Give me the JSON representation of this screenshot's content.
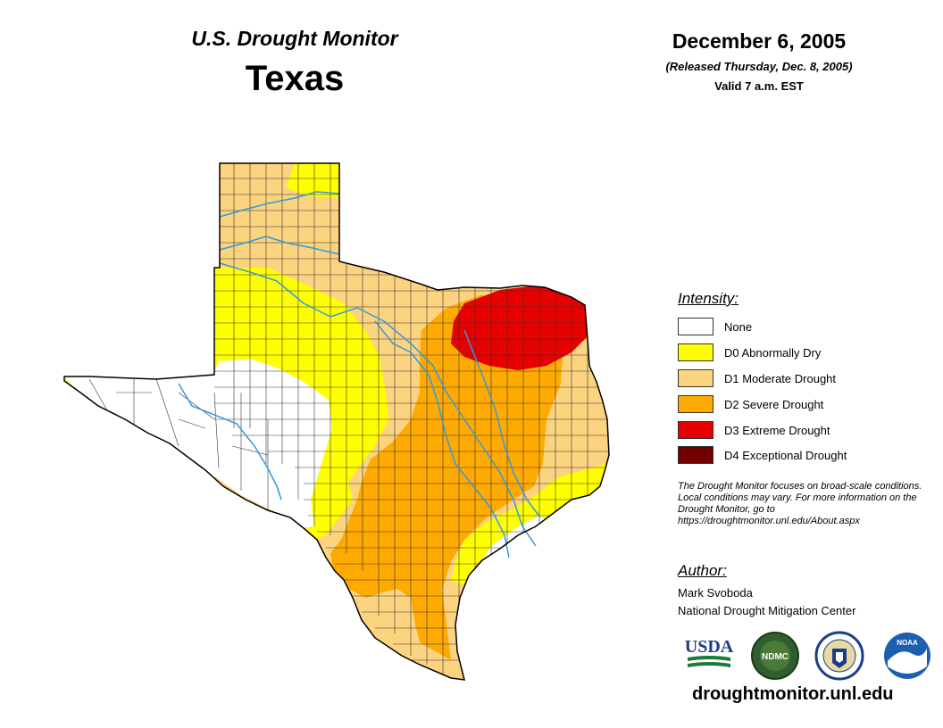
{
  "header": {
    "monitor_title": "U.S. Drought Monitor",
    "state": "Texas",
    "date": "December 6, 2005",
    "released": "(Released Thursday, Dec. 8, 2005)",
    "valid": "Valid 7 a.m. EST"
  },
  "legend": {
    "title": "Intensity:",
    "items": [
      {
        "label": "None",
        "color": "#ffffff"
      },
      {
        "label": "D0 Abnormally Dry",
        "color": "#ffff00"
      },
      {
        "label": "D1 Moderate Drought",
        "color": "#fcd37f"
      },
      {
        "label": "D2 Severe Drought",
        "color": "#ffaa00"
      },
      {
        "label": "D3 Extreme Drought",
        "color": "#e60000"
      },
      {
        "label": "D4 Exceptional Drought",
        "color": "#730000"
      }
    ]
  },
  "note": "The Drought Monitor focuses on broad-scale conditions. Local conditions may vary. For more information on the Drought Monitor, go to https://droughtmonitor.unl.edu/About.aspx",
  "author": {
    "title": "Author:",
    "name": "Mark Svoboda",
    "organization": "National Drought Mitigation Center"
  },
  "logos": {
    "usda": "USDA",
    "ndmc": "NDMC",
    "commerce": "commerce-seal",
    "noaa": "NOAA"
  },
  "website": "droughtmonitor.unl.edu",
  "colors": {
    "river": "#3399dd",
    "county_line": "#333333",
    "outline": "#000000"
  }
}
